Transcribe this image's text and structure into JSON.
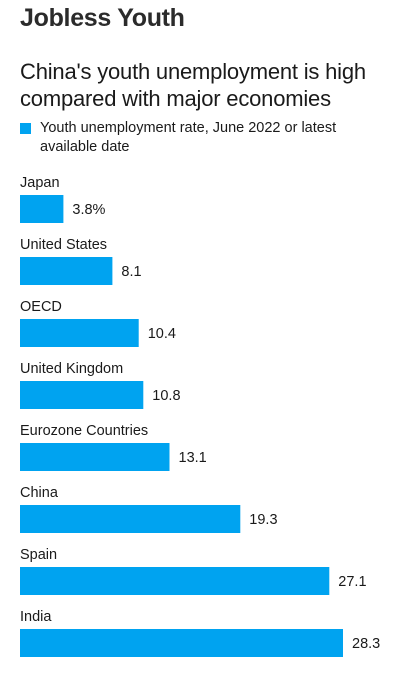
{
  "kicker": "Jobless Youth",
  "headline": "China's youth unemployment is high compared with major economies",
  "legend": {
    "label": "Youth unemployment rate, June 2022 or latest available date",
    "color": "#00a3f0"
  },
  "chart_data": {
    "type": "bar",
    "orientation": "horizontal",
    "categories": [
      "Japan",
      "United States",
      "OECD",
      "United Kingdom",
      "Eurozone Countries",
      "China",
      "Spain",
      "India"
    ],
    "values": [
      3.8,
      8.1,
      10.4,
      10.8,
      13.1,
      19.3,
      27.1,
      28.3
    ],
    "value_labels": [
      "3.8%",
      "8.1",
      "10.4",
      "10.8",
      "13.1",
      "19.3",
      "27.1",
      "28.3"
    ],
    "series": [
      {
        "name": "Youth unemployment rate, June 2022 or latest available date",
        "values": [
          3.8,
          8.1,
          10.4,
          10.8,
          13.1,
          19.3,
          27.1,
          28.3
        ]
      }
    ],
    "bar_color": "#00a3f0",
    "xlim": [
      0,
      28.3
    ],
    "grid": false,
    "legend_position": "top-left"
  }
}
